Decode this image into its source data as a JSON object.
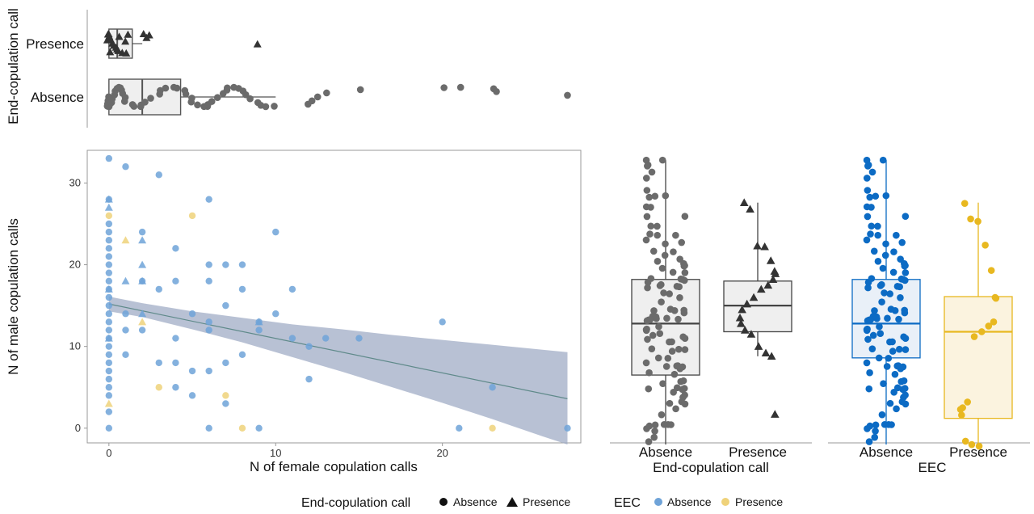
{
  "colors": {
    "grey_point": "#6b6b6b",
    "dark_point": "#333333",
    "eec_absence": "#0c6bc4",
    "eec_presence": "#e8b820",
    "eec_absence_light": "#6fa3d8",
    "eec_presence_light": "#efd27a",
    "ribbon": "#9aa6c2",
    "fit_line": "#5f8a8a",
    "box_fill_grey": "#efefef",
    "box_fill_blue": "#e9f0f8",
    "box_fill_yellow": "#fbf3df",
    "frame": "#999999"
  },
  "chart_data": [
    {
      "id": "top",
      "type": "boxplot-horizontal",
      "ylabel": "End-copulation call",
      "categories": [
        "Absence",
        "Presence"
      ],
      "xlim": [
        -1.3,
        28.3
      ],
      "boxes": [
        {
          "name": "Absence",
          "min": 0,
          "q1": 0,
          "median": 2,
          "q3": 4.3,
          "max": 10
        },
        {
          "name": "Presence",
          "min": 0,
          "q1": 0,
          "median": 0.5,
          "q3": 1.4,
          "max": 2
        }
      ],
      "presence_points": [
        0,
        0,
        0.1,
        0.2,
        0.3,
        0.5,
        0.6,
        0.8,
        1,
        0,
        0.4,
        0.2,
        0.9,
        2.2,
        2.4,
        2.1,
        1.2,
        0.7,
        0,
        9
      ],
      "absence_points": [
        0,
        0,
        0,
        0,
        0.1,
        0.1,
        0.2,
        0.2,
        0.3,
        0.3,
        0.4,
        0.5,
        0.6,
        0.7,
        0.8,
        1,
        1,
        1.5,
        1.6,
        2,
        2,
        2.2,
        2.5,
        3,
        3,
        3.3,
        3.8,
        4,
        4.5,
        4.6,
        5,
        5,
        5.4,
        5.8,
        6,
        6,
        6.2,
        6.5,
        6.8,
        7,
        7,
        7.4,
        7.7,
        8,
        8.2,
        8.5,
        9,
        9.2,
        9.5,
        10,
        12,
        12.2,
        12.5,
        13,
        15,
        20,
        21,
        23,
        23.2,
        27.5
      ]
    },
    {
      "id": "scatter",
      "type": "scatter",
      "xlabel": "N of female copulation calls",
      "ylabel": "N of male copulation calls",
      "xlim": [
        -1.3,
        28.3
      ],
      "ylim": [
        -1.8,
        34
      ],
      "xticks": [
        0,
        10,
        20
      ],
      "yticks": [
        0,
        10,
        20,
        30
      ],
      "grid": false,
      "fit": {
        "x0": 0,
        "y0": 15.2,
        "x1": 27.5,
        "y1": 3.6
      },
      "ribbon": {
        "x": [
          0,
          2,
          5,
          8,
          11,
          14,
          17,
          20,
          23,
          26,
          27.5
        ],
        "lower": [
          14.3,
          13.6,
          12.1,
          10.5,
          8.7,
          6.9,
          5,
          3.1,
          1.1,
          -1,
          -2
        ],
        "upper": [
          16.1,
          15.3,
          14.3,
          13.5,
          12.7,
          12.1,
          11.4,
          10.8,
          10.2,
          9.6,
          9.3
        ]
      },
      "points": [
        {
          "x": 0,
          "y": 33,
          "e": "A",
          "s": "A"
        },
        {
          "x": 0,
          "y": 28,
          "e": "A",
          "s": "A"
        },
        {
          "x": 0,
          "y": 28,
          "e": "A",
          "s": "P"
        },
        {
          "x": 0,
          "y": 27,
          "e": "A",
          "s": "P"
        },
        {
          "x": 0,
          "y": 26,
          "e": "P",
          "s": "A"
        },
        {
          "x": 0,
          "y": 25,
          "e": "A",
          "s": "A"
        },
        {
          "x": 0,
          "y": 24,
          "e": "A",
          "s": "A"
        },
        {
          "x": 0,
          "y": 23,
          "e": "A",
          "s": "A"
        },
        {
          "x": 0,
          "y": 22,
          "e": "A",
          "s": "A"
        },
        {
          "x": 0,
          "y": 21,
          "e": "A",
          "s": "A"
        },
        {
          "x": 0,
          "y": 20,
          "e": "A",
          "s": "A"
        },
        {
          "x": 0,
          "y": 19,
          "e": "A",
          "s": "A"
        },
        {
          "x": 0,
          "y": 18,
          "e": "A",
          "s": "A"
        },
        {
          "x": 0,
          "y": 17,
          "e": "A",
          "s": "A"
        },
        {
          "x": 0,
          "y": 16,
          "e": "A",
          "s": "A"
        },
        {
          "x": 0,
          "y": 15,
          "e": "A",
          "s": "A"
        },
        {
          "x": 0,
          "y": 14,
          "e": "A",
          "s": "A"
        },
        {
          "x": 0,
          "y": 13,
          "e": "A",
          "s": "A"
        },
        {
          "x": 0,
          "y": 12,
          "e": "A",
          "s": "A"
        },
        {
          "x": 0,
          "y": 11,
          "e": "A",
          "s": "A"
        },
        {
          "x": 0,
          "y": 10,
          "e": "A",
          "s": "A"
        },
        {
          "x": 0,
          "y": 9,
          "e": "A",
          "s": "A"
        },
        {
          "x": 0,
          "y": 8,
          "e": "A",
          "s": "A"
        },
        {
          "x": 0,
          "y": 7,
          "e": "A",
          "s": "A"
        },
        {
          "x": 0,
          "y": 6,
          "e": "A",
          "s": "A"
        },
        {
          "x": 0,
          "y": 5,
          "e": "A",
          "s": "A"
        },
        {
          "x": 0,
          "y": 4,
          "e": "A",
          "s": "A"
        },
        {
          "x": 0,
          "y": 3,
          "e": "P",
          "s": "P"
        },
        {
          "x": 0,
          "y": 2,
          "e": "A",
          "s": "A"
        },
        {
          "x": 0,
          "y": 0,
          "e": "A",
          "s": "A"
        },
        {
          "x": 0,
          "y": 17,
          "e": "A",
          "s": "P"
        },
        {
          "x": 0,
          "y": 11,
          "e": "A",
          "s": "P"
        },
        {
          "x": 1,
          "y": 32,
          "e": "A",
          "s": "A"
        },
        {
          "x": 1,
          "y": 23,
          "e": "P",
          "s": "P"
        },
        {
          "x": 1,
          "y": 18,
          "e": "A",
          "s": "P"
        },
        {
          "x": 1,
          "y": 14,
          "e": "A",
          "s": "A"
        },
        {
          "x": 1,
          "y": 12,
          "e": "A",
          "s": "A"
        },
        {
          "x": 1,
          "y": 9,
          "e": "A",
          "s": "A"
        },
        {
          "x": 2,
          "y": 24,
          "e": "A",
          "s": "A"
        },
        {
          "x": 2,
          "y": 23,
          "e": "A",
          "s": "P"
        },
        {
          "x": 2,
          "y": 20,
          "e": "A",
          "s": "P"
        },
        {
          "x": 2,
          "y": 18,
          "e": "A",
          "s": "A"
        },
        {
          "x": 2,
          "y": 18,
          "e": "A",
          "s": "P"
        },
        {
          "x": 2,
          "y": 14,
          "e": "A",
          "s": "P"
        },
        {
          "x": 2,
          "y": 13,
          "e": "P",
          "s": "P"
        },
        {
          "x": 2,
          "y": 12,
          "e": "A",
          "s": "A"
        },
        {
          "x": 3,
          "y": 31,
          "e": "A",
          "s": "A"
        },
        {
          "x": 3,
          "y": 17,
          "e": "A",
          "s": "A"
        },
        {
          "x": 3,
          "y": 8,
          "e": "A",
          "s": "A"
        },
        {
          "x": 3,
          "y": 5,
          "e": "P",
          "s": "A"
        },
        {
          "x": 4,
          "y": 22,
          "e": "A",
          "s": "A"
        },
        {
          "x": 4,
          "y": 18,
          "e": "A",
          "s": "A"
        },
        {
          "x": 4,
          "y": 11,
          "e": "A",
          "s": "A"
        },
        {
          "x": 4,
          "y": 8,
          "e": "A",
          "s": "A"
        },
        {
          "x": 4,
          "y": 5,
          "e": "A",
          "s": "A"
        },
        {
          "x": 5,
          "y": 26,
          "e": "P",
          "s": "A"
        },
        {
          "x": 5,
          "y": 14,
          "e": "A",
          "s": "A"
        },
        {
          "x": 5,
          "y": 7,
          "e": "A",
          "s": "A"
        },
        {
          "x": 5,
          "y": 4,
          "e": "A",
          "s": "A"
        },
        {
          "x": 6,
          "y": 28,
          "e": "A",
          "s": "A"
        },
        {
          "x": 6,
          "y": 20,
          "e": "A",
          "s": "A"
        },
        {
          "x": 6,
          "y": 18,
          "e": "A",
          "s": "A"
        },
        {
          "x": 6,
          "y": 13,
          "e": "A",
          "s": "A"
        },
        {
          "x": 6,
          "y": 12,
          "e": "A",
          "s": "A"
        },
        {
          "x": 6,
          "y": 7,
          "e": "A",
          "s": "A"
        },
        {
          "x": 6,
          "y": 0,
          "e": "A",
          "s": "A"
        },
        {
          "x": 7,
          "y": 20,
          "e": "A",
          "s": "A"
        },
        {
          "x": 7,
          "y": 15,
          "e": "A",
          "s": "A"
        },
        {
          "x": 7,
          "y": 8,
          "e": "A",
          "s": "A"
        },
        {
          "x": 7,
          "y": 4,
          "e": "P",
          "s": "A"
        },
        {
          "x": 7,
          "y": 3,
          "e": "A",
          "s": "A"
        },
        {
          "x": 8,
          "y": 20,
          "e": "A",
          "s": "A"
        },
        {
          "x": 8,
          "y": 17,
          "e": "A",
          "s": "A"
        },
        {
          "x": 8,
          "y": 9,
          "e": "A",
          "s": "A"
        },
        {
          "x": 8,
          "y": 0,
          "e": "P",
          "s": "A"
        },
        {
          "x": 9,
          "y": 13,
          "e": "A",
          "s": "A"
        },
        {
          "x": 9,
          "y": 13,
          "e": "A",
          "s": "P"
        },
        {
          "x": 9,
          "y": 12,
          "e": "A",
          "s": "A"
        },
        {
          "x": 9,
          "y": 0,
          "e": "A",
          "s": "A"
        },
        {
          "x": 10,
          "y": 24,
          "e": "A",
          "s": "A"
        },
        {
          "x": 10,
          "y": 14,
          "e": "A",
          "s": "A"
        },
        {
          "x": 11,
          "y": 17,
          "e": "A",
          "s": "A"
        },
        {
          "x": 11,
          "y": 11,
          "e": "A",
          "s": "A"
        },
        {
          "x": 12,
          "y": 10,
          "e": "A",
          "s": "A"
        },
        {
          "x": 12,
          "y": 6,
          "e": "A",
          "s": "A"
        },
        {
          "x": 13,
          "y": 11,
          "e": "A",
          "s": "A"
        },
        {
          "x": 15,
          "y": 11,
          "e": "A",
          "s": "A"
        },
        {
          "x": 20,
          "y": 13,
          "e": "A",
          "s": "A"
        },
        {
          "x": 21,
          "y": 0,
          "e": "A",
          "s": "A"
        },
        {
          "x": 23,
          "y": 5,
          "e": "A",
          "s": "A"
        },
        {
          "x": 23,
          "y": 0,
          "e": "P",
          "s": "A"
        },
        {
          "x": 27.5,
          "y": 0,
          "e": "A",
          "s": "A"
        }
      ]
    },
    {
      "id": "box_ecc",
      "type": "boxplot",
      "xlabel": "End-copulation call",
      "categories": [
        "Absence",
        "Presence"
      ],
      "ylim": [
        -1.8,
        34
      ],
      "boxes": [
        {
          "name": "Absence",
          "min": -2,
          "q1": 6.5,
          "median": 12.8,
          "q3": 18.2,
          "max": 32.8
        },
        {
          "name": "Presence",
          "min": 8.8,
          "q1": 11.8,
          "median": 15,
          "q3": 18,
          "max": 27.6
        }
      ],
      "presence_points": [
        27.6,
        26.8,
        22.3,
        22.2,
        20.5,
        19.2,
        18.9,
        18.2,
        17.5,
        17,
        16,
        15.2,
        14.5,
        13.5,
        12.8,
        12,
        11.5,
        10,
        9.2,
        8.8,
        1.7
      ]
    },
    {
      "id": "box_eec",
      "type": "boxplot",
      "xlabel": "EEC",
      "categories": [
        "Absence",
        "Presence"
      ],
      "ylim": [
        -1.8,
        34
      ],
      "boxes": [
        {
          "name": "Absence",
          "min": -2,
          "q1": 8.6,
          "median": 12.8,
          "q3": 18.2,
          "max": 32.8
        },
        {
          "name": "Presence",
          "min": -2.2,
          "q1": 1.2,
          "median": 11.8,
          "q3": 16.1,
          "max": 27.6
        }
      ],
      "presence_points": [
        27.5,
        25.6,
        25.3,
        22.4,
        19.3,
        16,
        15.9,
        13,
        12.5,
        11.8,
        11.2,
        3.2,
        2.5,
        2.3,
        1.6,
        -1.6,
        -2,
        -2.2
      ]
    }
  ],
  "legend": {
    "shape_title": "End-copulation call",
    "shape_items": [
      "Absence",
      "Presence"
    ],
    "color_title": "EEC",
    "color_items": [
      "Absence",
      "Presence"
    ]
  }
}
